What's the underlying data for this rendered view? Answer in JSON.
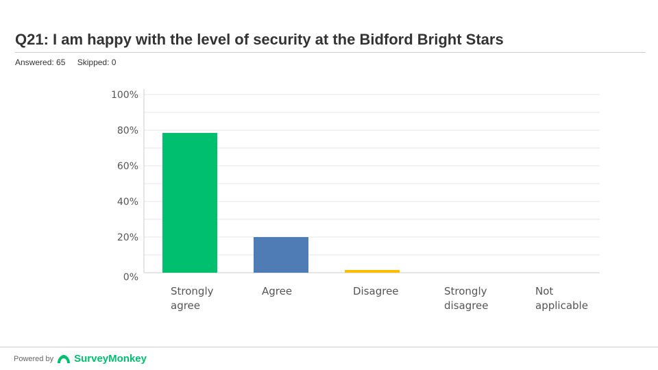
{
  "header": {
    "title": "Q21: I am happy with the level of security at the Bidford Bright Stars",
    "answered_label": "Answered: 65",
    "skipped_label": "Skipped: 0"
  },
  "footer": {
    "powered_by": "Powered by",
    "brand": "SurveyMonkey"
  },
  "chart_data": {
    "type": "bar",
    "categories": [
      [
        "Strongly",
        "agree"
      ],
      [
        "Agree"
      ],
      [
        "Disagree"
      ],
      [
        "Strongly",
        "disagree"
      ],
      [
        "Not",
        "applicable"
      ]
    ],
    "values": [
      78.46,
      20.0,
      1.54,
      0,
      0
    ],
    "colors": [
      "#00bf6f",
      "#507cb6",
      "#f9be00",
      "#6bc8cd",
      "#304a6f"
    ],
    "yticks": [
      "0%",
      "20%",
      "40%",
      "60%",
      "80%",
      "100%"
    ],
    "ylim": [
      0,
      100
    ],
    "grid": true
  }
}
